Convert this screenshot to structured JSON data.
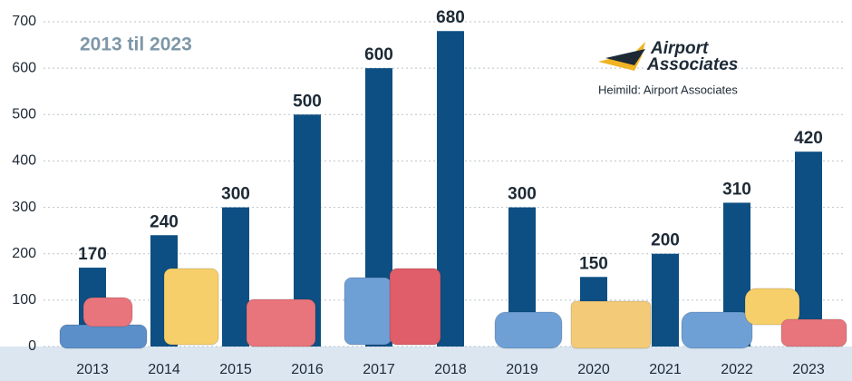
{
  "chart_data": {
    "type": "bar",
    "subtitle": "2013 til 2023",
    "logo": [
      "Airport",
      "Associates"
    ],
    "source": "Heimild: Airport Associates",
    "categories": [
      "2013",
      "2014",
      "2015",
      "2016",
      "2017",
      "2018",
      "2019",
      "2020",
      "2021",
      "2022",
      "2023"
    ],
    "values": [
      170,
      240,
      300,
      500,
      600,
      680,
      300,
      150,
      200,
      310,
      420
    ],
    "color": "#0d4f82",
    "ylim": [
      0,
      700
    ],
    "yticks": [
      0,
      100,
      200,
      300,
      400,
      500,
      600,
      700
    ],
    "grid": true
  }
}
